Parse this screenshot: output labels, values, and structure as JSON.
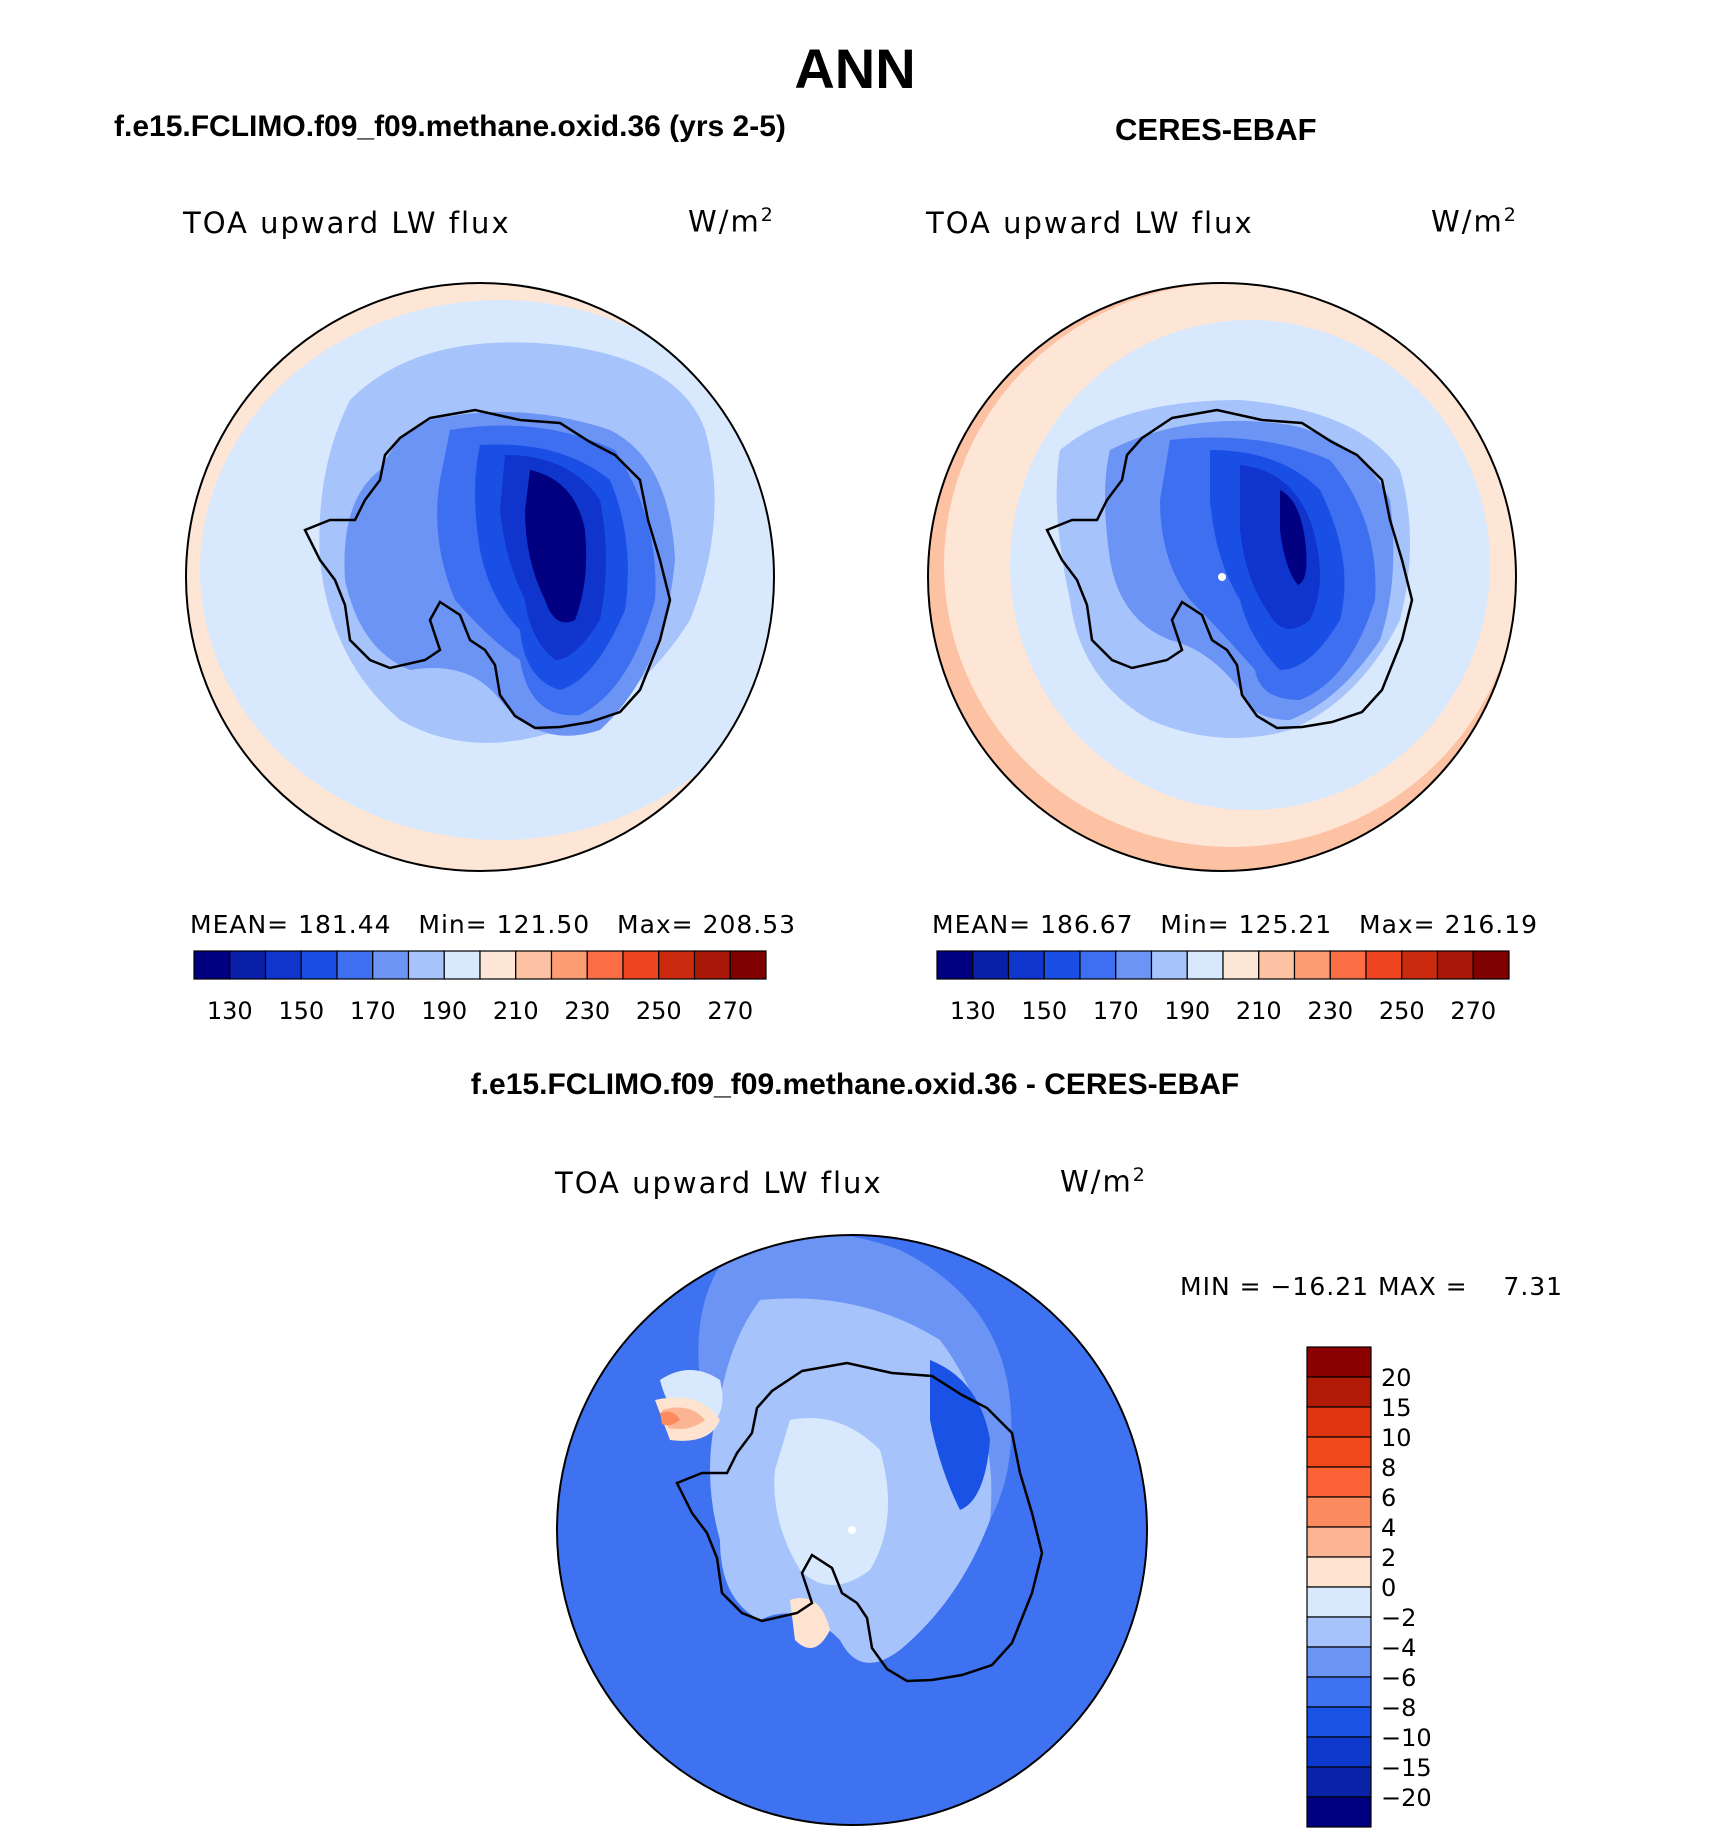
{
  "title": "ANN",
  "panels": {
    "left": {
      "heading": "f.e15.FCLIMO.f09_f09.methane.oxid.36 (yrs 2-5)",
      "variable": "TOA upward LW flux",
      "unit_base": "W/m",
      "unit_exp": "2",
      "mean_label": "MEAN=",
      "mean": "181.44",
      "min_label": "Min=",
      "min": "121.50",
      "max_label": "Max=",
      "max": "208.53"
    },
    "right": {
      "heading": "CERES-EBAF",
      "variable": "TOA upward LW flux",
      "unit_base": "W/m",
      "unit_exp": "2",
      "mean_label": "MEAN=",
      "mean": "186.67",
      "min_label": "Min=",
      "min": "125.21",
      "max_label": "Max=",
      "max": "216.19"
    },
    "diff": {
      "heading": "f.e15.FCLIMO.f09_f09.methane.oxid.36 - CERES-EBAF",
      "variable": "TOA upward LW flux",
      "unit_base": "W/m",
      "unit_exp": "2",
      "minmax_text": "MIN = −16.21 MAX =    7.31"
    }
  },
  "colorbars": {
    "abs": {
      "colors": [
        "#000080",
        "#0a1fa8",
        "#0f35cc",
        "#1a4fe6",
        "#3e6ff0",
        "#6b94f5",
        "#a6c3fb",
        "#d8e8fd",
        "#fde6d6",
        "#fcc2a3",
        "#fb9c74",
        "#fb6e45",
        "#ee4420",
        "#cc2a0f",
        "#a81708",
        "#7f0000"
      ],
      "tick_labels": [
        "130",
        "150",
        "170",
        "190",
        "210",
        "230",
        "250",
        "270"
      ]
    },
    "diff": {
      "colors": [
        "#000080",
        "#0a22a8",
        "#0f38cc",
        "#1a52e6",
        "#3e72f0",
        "#6b94f5",
        "#a6c3fb",
        "#d8e8fd",
        "#fde3d0",
        "#fcb594",
        "#fb8a5e",
        "#fb6236",
        "#f04a1c",
        "#e03510",
        "#b21a08",
        "#8b0000"
      ],
      "tick_labels": [
        "20",
        "15",
        "10",
        "8",
        "6",
        "4",
        "2",
        "0",
        "−2",
        "−4",
        "−6",
        "−8",
        "−10",
        "−15",
        "−20"
      ]
    }
  },
  "chart_data": [
    {
      "type": "heatmap",
      "projection": "south polar stereographic",
      "region": "Antarctica / Southern Ocean",
      "season": "ANN",
      "dataset": "f.e15.FCLIMO.f09_f09.methane.oxid.36 (yrs 2-5)",
      "variable": "TOA upward LW flux",
      "units": "W/m2",
      "mean": 181.44,
      "min": 121.5,
      "max": 208.53,
      "contour_levels": [
        130,
        140,
        150,
        160,
        170,
        180,
        190,
        200,
        210,
        220,
        230,
        240,
        250,
        260,
        270
      ],
      "colorbar_ticks": [
        130,
        150,
        170,
        190,
        210,
        230,
        250,
        270
      ]
    },
    {
      "type": "heatmap",
      "projection": "south polar stereographic",
      "region": "Antarctica / Southern Ocean",
      "season": "ANN",
      "dataset": "CERES-EBAF",
      "variable": "TOA upward LW flux",
      "units": "W/m2",
      "mean": 186.67,
      "min": 125.21,
      "max": 216.19,
      "contour_levels": [
        130,
        140,
        150,
        160,
        170,
        180,
        190,
        200,
        210,
        220,
        230,
        240,
        250,
        260,
        270
      ],
      "colorbar_ticks": [
        130,
        150,
        170,
        190,
        210,
        230,
        250,
        270
      ]
    },
    {
      "type": "heatmap",
      "projection": "south polar stereographic",
      "region": "Antarctica / Southern Ocean",
      "season": "ANN",
      "dataset": "f.e15.FCLIMO.f09_f09.methane.oxid.36 - CERES-EBAF",
      "variable": "TOA upward LW flux",
      "units": "W/m2",
      "min": -16.21,
      "max": 7.31,
      "contour_levels": [
        -20,
        -15,
        -10,
        -8,
        -6,
        -4,
        -2,
        0,
        2,
        4,
        6,
        8,
        10,
        15,
        20
      ],
      "colorbar_ticks": [
        20,
        15,
        10,
        8,
        6,
        4,
        2,
        0,
        -2,
        -4,
        -6,
        -8,
        -10,
        -15,
        -20
      ]
    }
  ]
}
